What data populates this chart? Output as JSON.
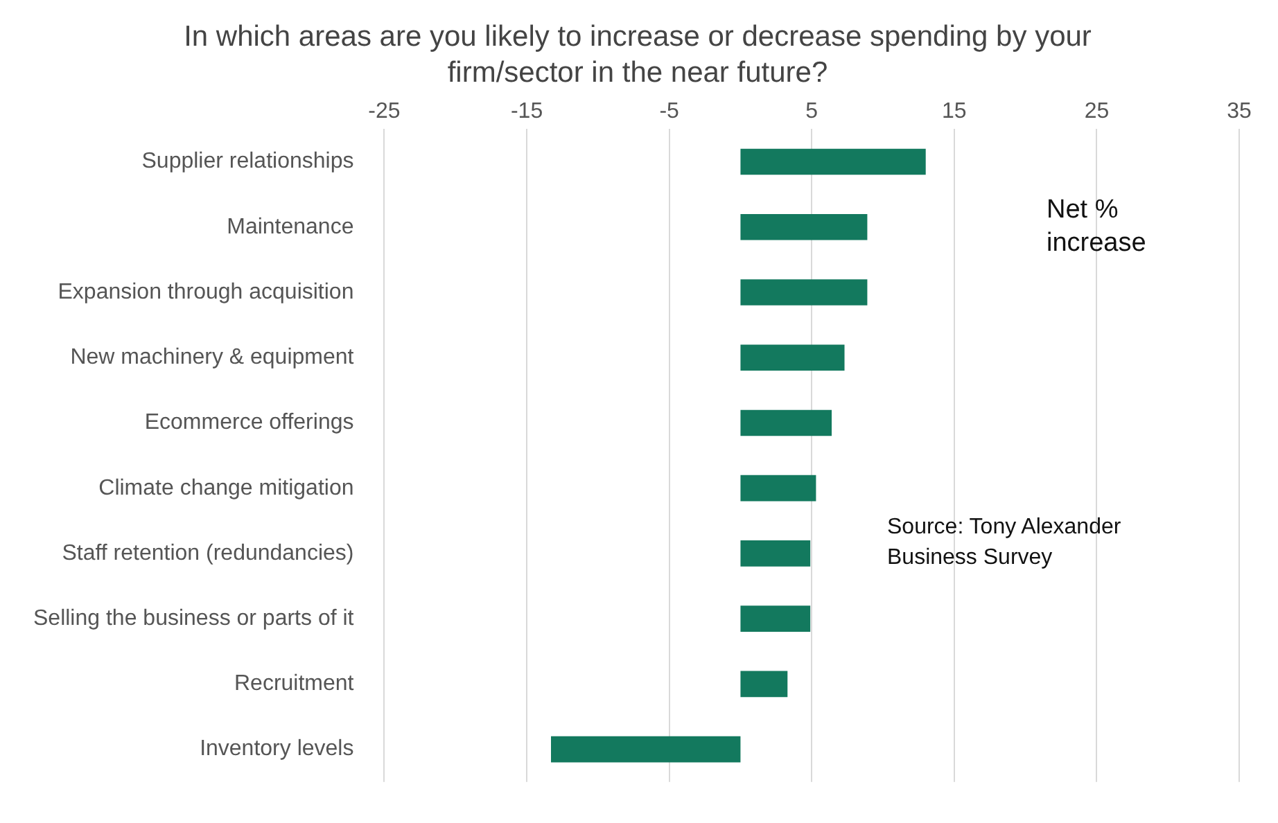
{
  "chart_data": {
    "type": "bar",
    "orientation": "horizontal",
    "title": "In which areas are you likely to increase or decrease spending by your firm/sector in the near future?",
    "categories": [
      "Supplier relationships",
      "Maintenance",
      "Expansion through acquisition",
      "New machinery & equipment",
      "Ecommerce offerings",
      "Climate change mitigation",
      "Staff retention (redundancies)",
      "Selling the business or parts of it",
      "Recruitment",
      "Inventory levels"
    ],
    "values": [
      13,
      8.9,
      8.9,
      7.3,
      6.4,
      5.3,
      4.9,
      4.9,
      3.3,
      -13.3
    ],
    "color": "#13795e",
    "xlim": [
      -25,
      35
    ],
    "xticks": [
      -25,
      -15,
      -5,
      5,
      15,
      25,
      35
    ],
    "grid": "x",
    "legend": false,
    "annotations": [
      "Net % increase",
      "Source: Tony Alexander Business Survey"
    ]
  }
}
